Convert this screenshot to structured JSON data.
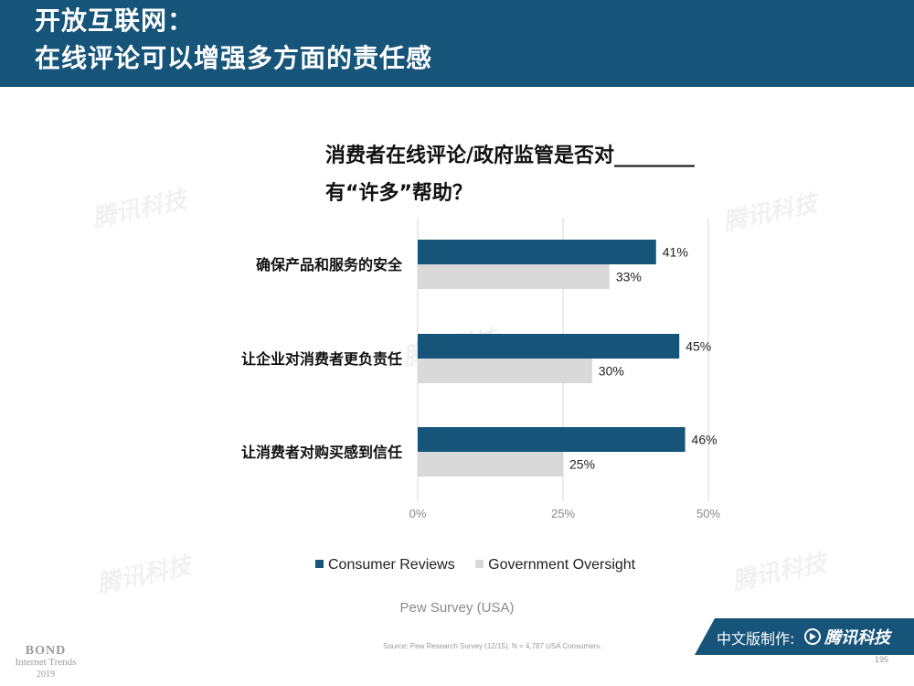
{
  "header": {
    "title_line1": "开放互联网：",
    "title_line2": "在线评论可以增强多方面的责任感"
  },
  "chart_data": {
    "type": "bar",
    "orientation": "horizontal",
    "title_line1": "消费者在线评论/政府监管是否对________",
    "title_line2": "有“许多”帮助？",
    "categories": [
      "确保产品和服务的安全",
      "让企业对消费者更负责任",
      "让消费者对购买感到信任"
    ],
    "series": [
      {
        "name": "Consumer Reviews",
        "values": [
          41,
          45,
          46
        ],
        "labels": [
          "41%",
          "45%",
          "46%"
        ],
        "color": "#16547a"
      },
      {
        "name": "Government Oversight",
        "values": [
          33,
          30,
          25
        ],
        "labels": [
          "33%",
          "30%",
          "25%"
        ],
        "color": "#d9d9d9"
      }
    ],
    "xlim": [
      0,
      50
    ],
    "xticks": [
      "0%",
      "25%",
      "50%"
    ],
    "grid": true,
    "legend_position": "bottom"
  },
  "subtitle": "Pew Survey (USA)",
  "source": "Source: Pew Research Survey (12/15).  N = 4,787 USA Consumers.",
  "footer": {
    "bond_line1": "BOND",
    "bond_line2": "Internet Trends",
    "bond_line3": "2019",
    "badge_text": "中文版制作:",
    "badge_logo": "腾讯科技",
    "page_number": "195"
  },
  "watermark": "腾讯科技",
  "colors": {
    "header_bg": "#16547a",
    "primary": "#16547a",
    "secondary": "#d9d9d9"
  }
}
